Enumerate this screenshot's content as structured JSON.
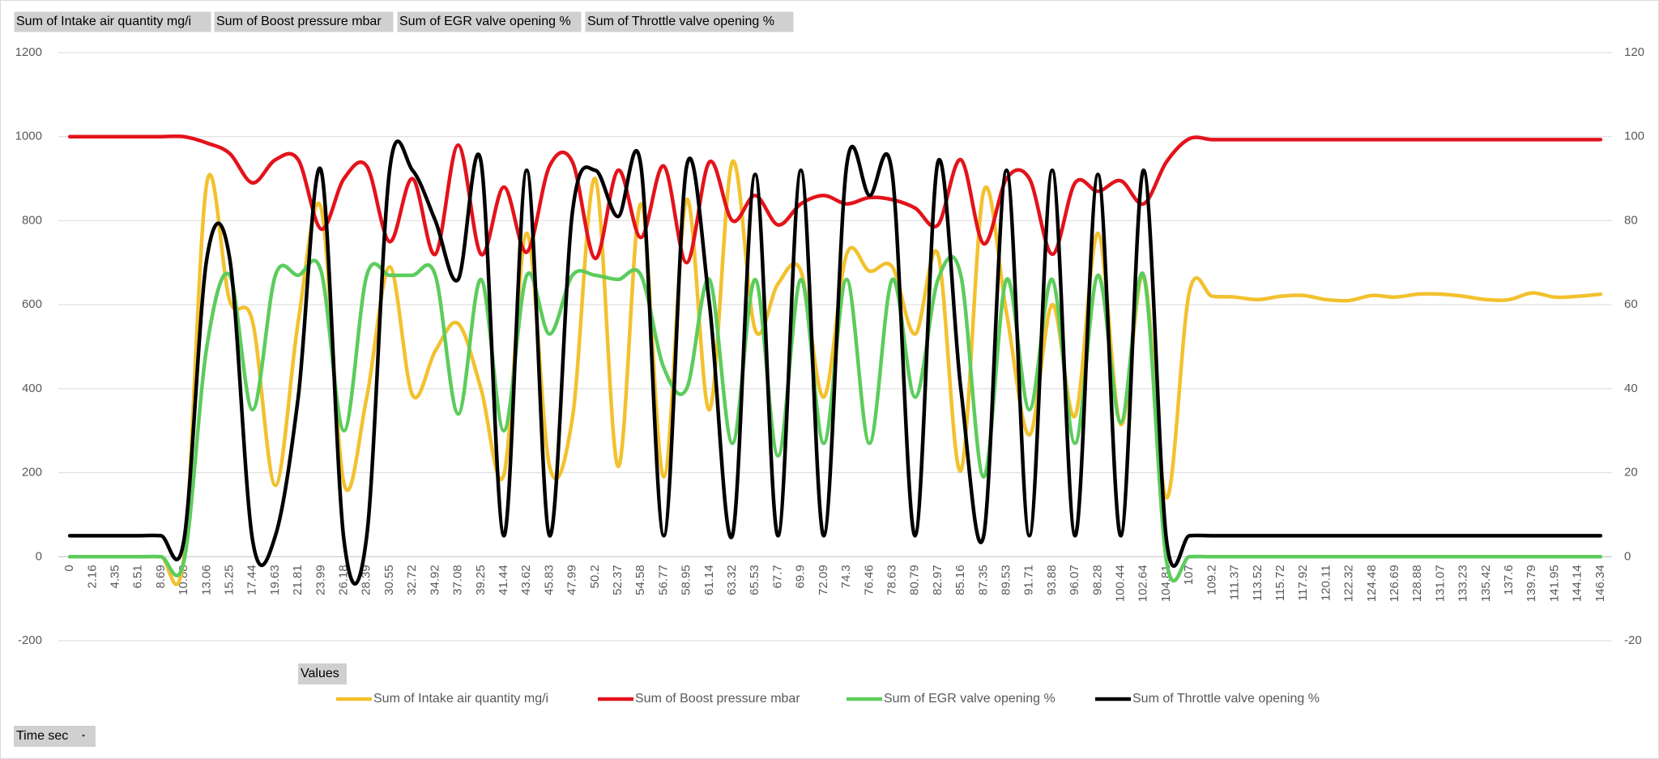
{
  "chart_data": {
    "type": "line",
    "field_buttons": [
      "Sum of Intake air quantity mg/i",
      "Sum of Boost pressure mbar",
      "Sum of EGR valve opening %",
      "Sum of Throttle valve opening %"
    ],
    "values_button": "Values",
    "axis_button": "Time sec",
    "categories": [
      "0",
      "2.16",
      "4.35",
      "6.51",
      "8.69",
      "10.88",
      "13.06",
      "15.25",
      "17.44",
      "19.63",
      "21.81",
      "23.99",
      "26.18",
      "28.39",
      "30.55",
      "32.72",
      "34.92",
      "37.08",
      "39.25",
      "41.44",
      "43.62",
      "45.83",
      "47.99",
      "50.2",
      "52.37",
      "54.58",
      "56.77",
      "58.95",
      "61.14",
      "63.32",
      "65.53",
      "67.7",
      "69.9",
      "72.09",
      "74.3",
      "76.46",
      "78.63",
      "80.79",
      "82.97",
      "85.16",
      "87.35",
      "89.53",
      "91.71",
      "93.88",
      "96.07",
      "98.28",
      "100.44",
      "102.64",
      "104.81",
      "107",
      "109.2",
      "111.37",
      "113.52",
      "115.72",
      "117.92",
      "120.11",
      "122.32",
      "124.48",
      "126.69",
      "128.88",
      "131.07",
      "133.23",
      "135.42",
      "137.6",
      "139.79",
      "141.95",
      "144.14",
      "146.34"
    ],
    "ylim": [
      -200,
      1200
    ],
    "yticks": [
      -200,
      0,
      200,
      400,
      600,
      800,
      1000,
      1200
    ],
    "y2lim": [
      -20,
      120
    ],
    "y2ticks": [
      -20,
      0,
      20,
      40,
      60,
      80,
      100,
      120
    ],
    "grid": true,
    "legend": "bottom",
    "series": [
      {
        "name": "Sum of Intake air quantity mg/i",
        "color": "#f2c12e",
        "values": [
          0,
          0,
          0,
          0,
          0,
          0,
          890,
          610,
          560,
          170,
          560,
          830,
          175,
          380,
          690,
          385,
          490,
          555,
          400,
          195,
          770,
          215,
          330,
          900,
          215,
          840,
          190,
          850,
          350,
          940,
          540,
          650,
          680,
          380,
          720,
          680,
          690,
          530,
          720,
          205,
          870,
          580,
          290,
          600,
          335,
          770,
          315,
          670,
          140,
          630,
          620,
          618,
          612,
          620,
          622,
          612,
          610,
          622,
          618,
          625,
          625,
          620,
          612,
          612,
          628,
          618,
          620,
          625
        ]
      },
      {
        "name": "Sum of Boost pressure mbar",
        "color": "#e3131b",
        "values": [
          1000,
          1000,
          1000,
          1000,
          1000,
          1000,
          985,
          960,
          890,
          945,
          945,
          780,
          900,
          930,
          750,
          900,
          720,
          980,
          720,
          880,
          725,
          930,
          940,
          710,
          920,
          760,
          930,
          700,
          940,
          800,
          860,
          790,
          840,
          860,
          840,
          855,
          850,
          830,
          790,
          945,
          745,
          900,
          900,
          720,
          890,
          870,
          895,
          840,
          940,
          995,
          993,
          993,
          993,
          993,
          993,
          993,
          993,
          993,
          993,
          993,
          993,
          993,
          993,
          993,
          993,
          993,
          993,
          993
        ]
      },
      {
        "name": "Sum of EGR valve opening %",
        "color": "#5ccc5c",
        "axis": "y2",
        "values": [
          0,
          0,
          0,
          0,
          0,
          -1,
          50,
          67,
          35,
          67,
          67,
          68,
          30,
          67,
          67,
          67,
          67,
          34,
          66,
          30,
          67,
          53,
          67,
          67,
          66,
          67,
          45,
          40,
          66,
          27,
          66,
          24,
          66,
          27,
          66,
          27,
          66,
          38,
          66,
          67,
          19,
          66,
          35,
          66,
          27,
          67,
          32,
          67,
          -1,
          0,
          0,
          0,
          0,
          0,
          0,
          0,
          0,
          0,
          0,
          0,
          0,
          0,
          0,
          0,
          0,
          0,
          0,
          0
        ]
      },
      {
        "name": "Sum of Throttle valve opening %",
        "color": "#000000",
        "axis": "y2",
        "values": [
          5,
          5,
          5,
          5,
          5,
          4,
          71,
          71,
          4,
          5,
          38,
          92,
          4,
          5,
          92,
          92,
          80,
          66,
          94,
          5,
          92,
          5,
          82,
          92,
          81,
          93,
          5,
          93,
          60,
          5,
          91,
          5,
          92,
          5,
          93,
          86,
          91,
          5,
          94,
          40,
          5,
          92,
          5,
          92,
          5,
          91,
          5,
          92,
          4,
          5,
          5,
          5,
          5,
          5,
          5,
          5,
          5,
          5,
          5,
          5,
          5,
          5,
          5,
          5,
          5,
          5,
          5,
          5
        ]
      }
    ]
  }
}
